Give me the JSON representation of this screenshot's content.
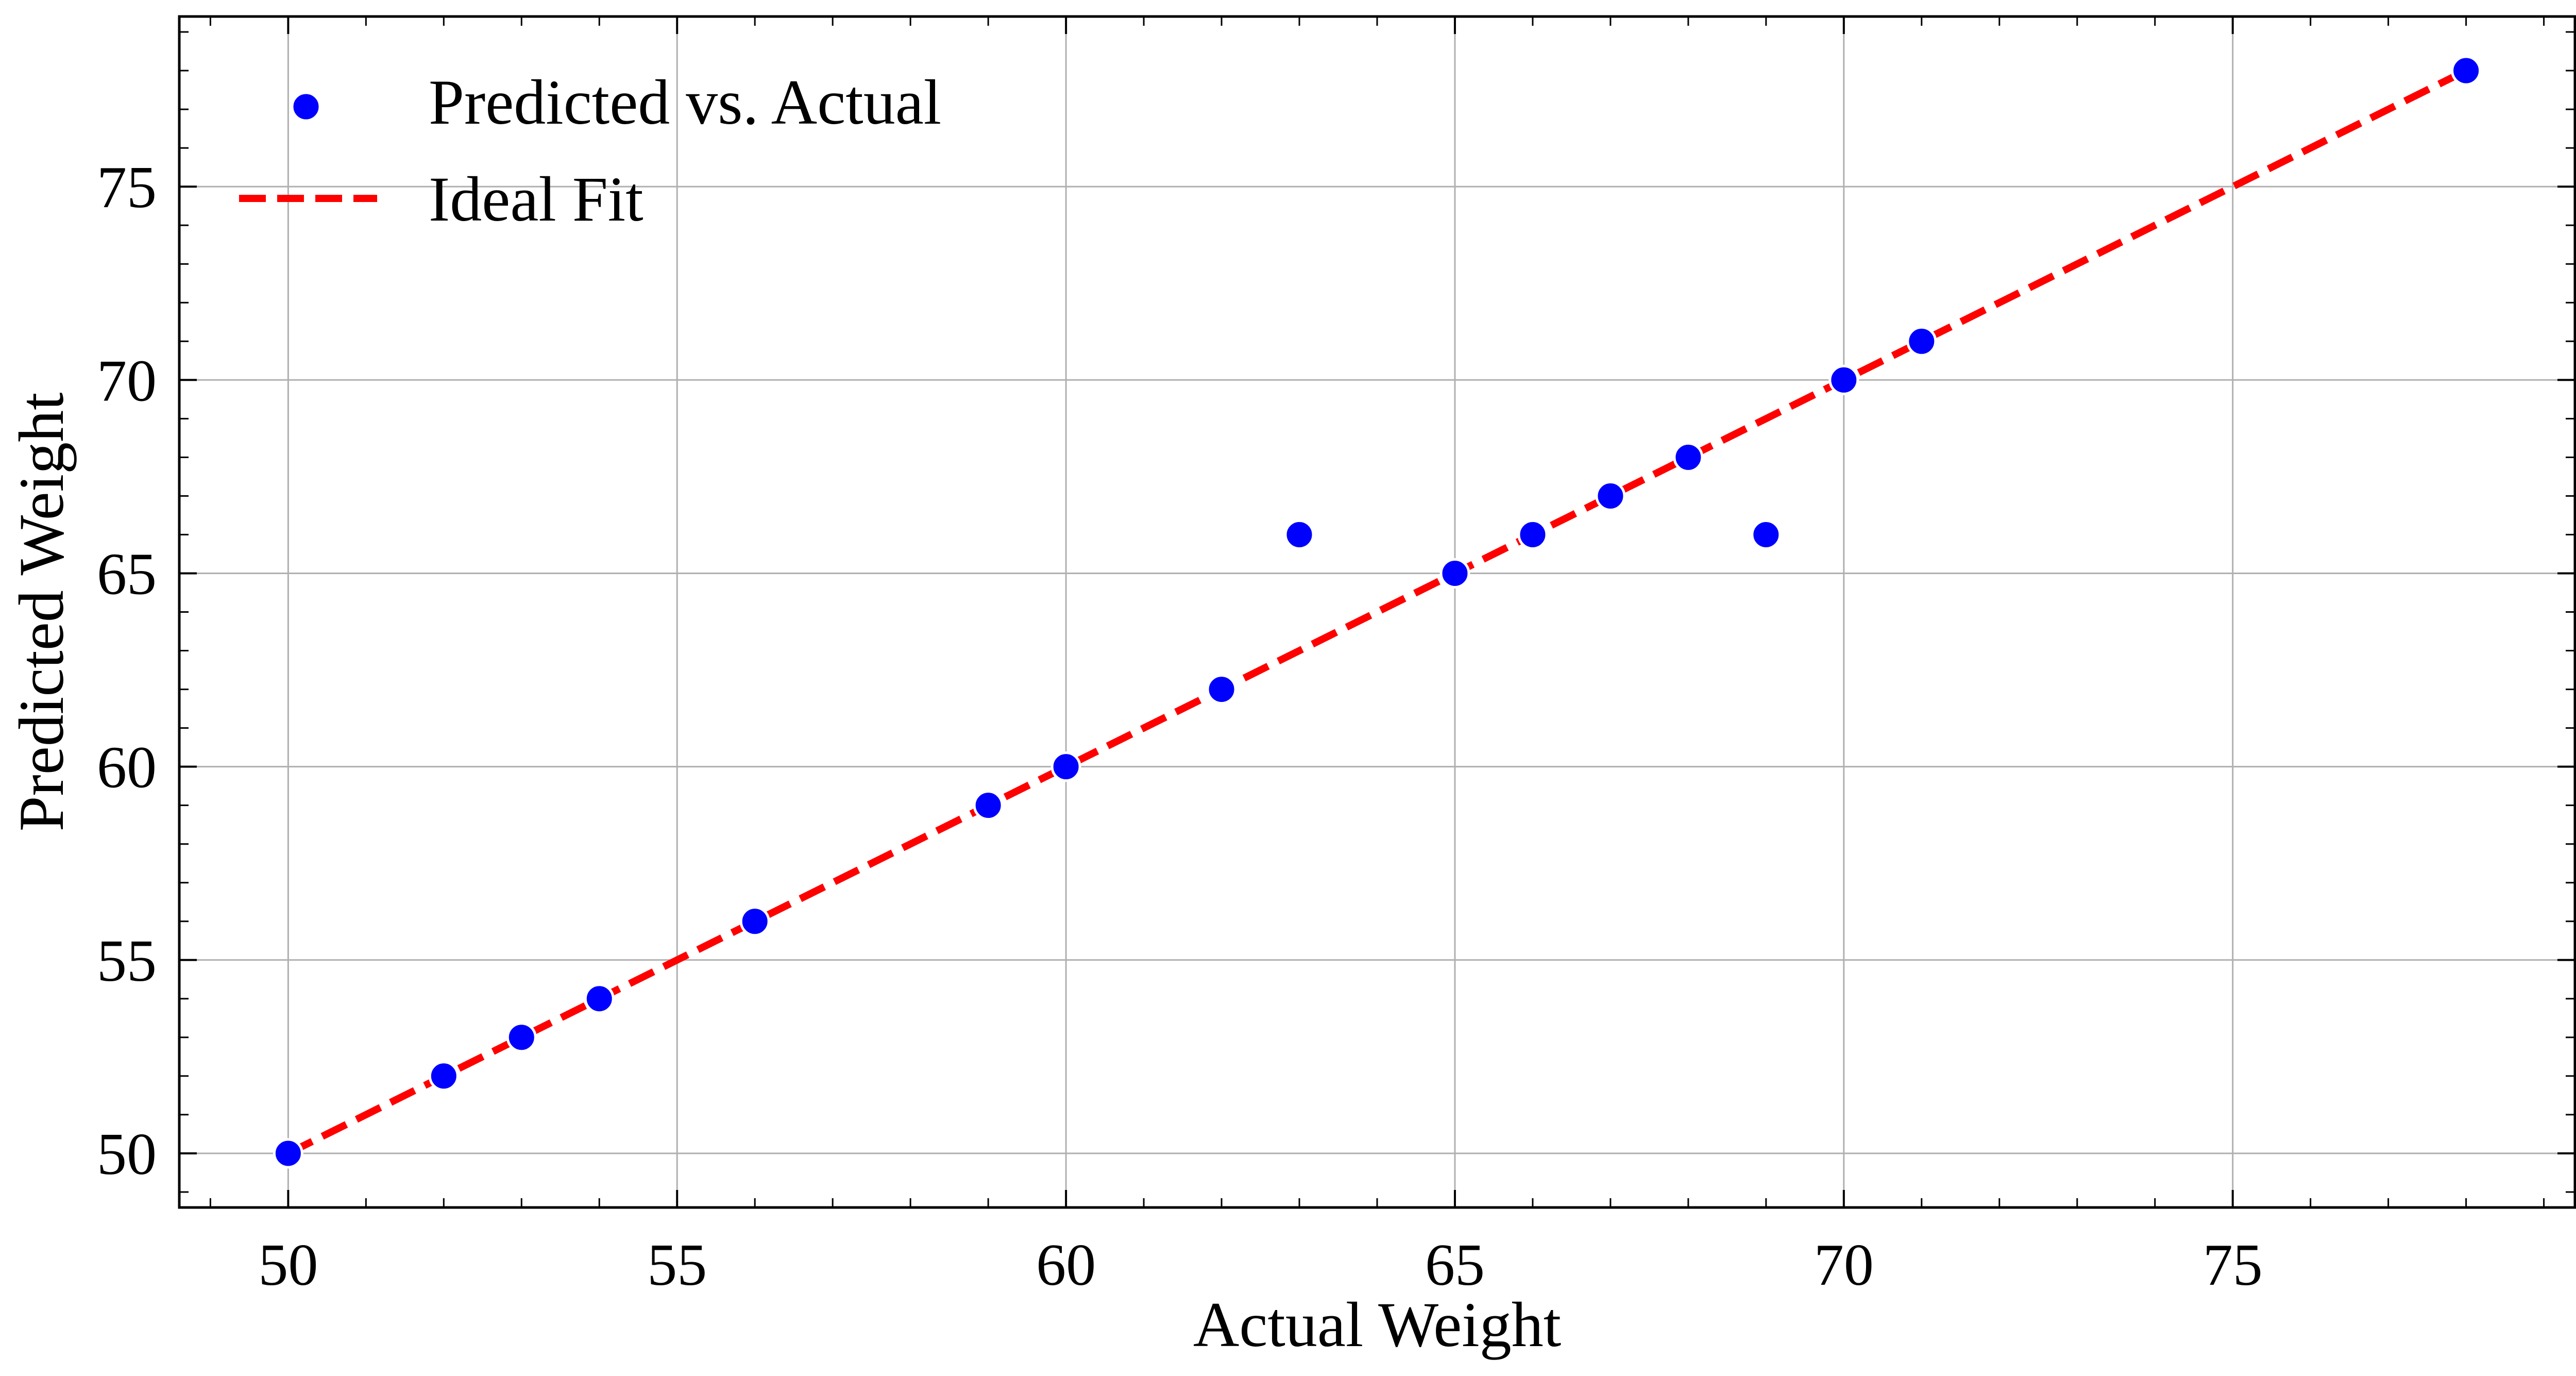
{
  "chart_data": {
    "type": "scatter",
    "xlabel": "Actual Weight",
    "ylabel": "Predicted Weight",
    "xlim": [
      48.6,
      79.4
    ],
    "ylim": [
      48.6,
      79.4
    ],
    "x_ticks": [
      50,
      55,
      60,
      65,
      70,
      75
    ],
    "y_ticks": [
      50,
      55,
      60,
      65,
      70,
      75
    ],
    "x_tick_labels": [
      "50",
      "55",
      "60",
      "65",
      "70",
      "75"
    ],
    "y_tick_labels": [
      "50",
      "55",
      "60",
      "65",
      "70",
      "75"
    ],
    "grid": true,
    "legend_position": "top-left",
    "series": [
      {
        "name": "Predicted vs. Actual",
        "kind": "scatter",
        "color": "#0000ff",
        "points": [
          {
            "x": 50,
            "y": 50
          },
          {
            "x": 52,
            "y": 52
          },
          {
            "x": 53,
            "y": 53
          },
          {
            "x": 54,
            "y": 54
          },
          {
            "x": 56,
            "y": 56
          },
          {
            "x": 59,
            "y": 59
          },
          {
            "x": 60,
            "y": 60
          },
          {
            "x": 62,
            "y": 62
          },
          {
            "x": 63,
            "y": 66
          },
          {
            "x": 65,
            "y": 65
          },
          {
            "x": 66,
            "y": 66
          },
          {
            "x": 67,
            "y": 67
          },
          {
            "x": 68,
            "y": 68
          },
          {
            "x": 69,
            "y": 66
          },
          {
            "x": 70,
            "y": 70
          },
          {
            "x": 71,
            "y": 71
          },
          {
            "x": 78,
            "y": 78
          }
        ]
      },
      {
        "name": "Ideal Fit",
        "kind": "line",
        "style": "dashed",
        "color": "#ff0000",
        "points": [
          {
            "x": 50,
            "y": 50
          },
          {
            "x": 78,
            "y": 78
          }
        ]
      }
    ]
  }
}
